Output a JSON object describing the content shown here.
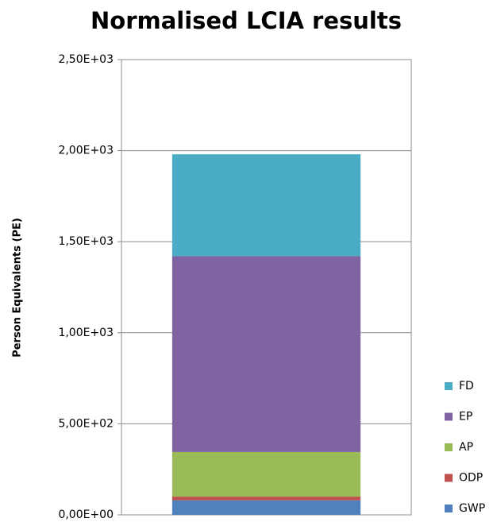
{
  "chart_data": {
    "type": "stacked_bar",
    "title": "Normalised LCIA results",
    "y_label": "Person Equivalents (PE)",
    "categories": [
      null
    ],
    "series": [
      {
        "name": "GWP",
        "color": "#4f81bd",
        "values": [
          80
        ]
      },
      {
        "name": "ODP",
        "color": "#c0504d",
        "values": [
          20
        ]
      },
      {
        "name": "AP",
        "color": "#9bbb59",
        "values": [
          245
        ]
      },
      {
        "name": "EP",
        "color": "#8064a2",
        "values": [
          1075
        ]
      },
      {
        "name": "FD",
        "color": "#4bacc6",
        "values": [
          560
        ]
      }
    ],
    "ylim": [
      0,
      2500
    ],
    "yticks": [
      {
        "value": 0,
        "label": "0,00E+00"
      },
      {
        "value": 500,
        "label": "5,00E+02"
      },
      {
        "value": 1000,
        "label": "1,00E+03"
      },
      {
        "value": 1500,
        "label": "1,50E+03"
      },
      {
        "value": 2000,
        "label": "2,00E+03"
      },
      {
        "value": 2500,
        "label": "2,50E+03"
      }
    ],
    "grid": true,
    "legend": "right"
  }
}
